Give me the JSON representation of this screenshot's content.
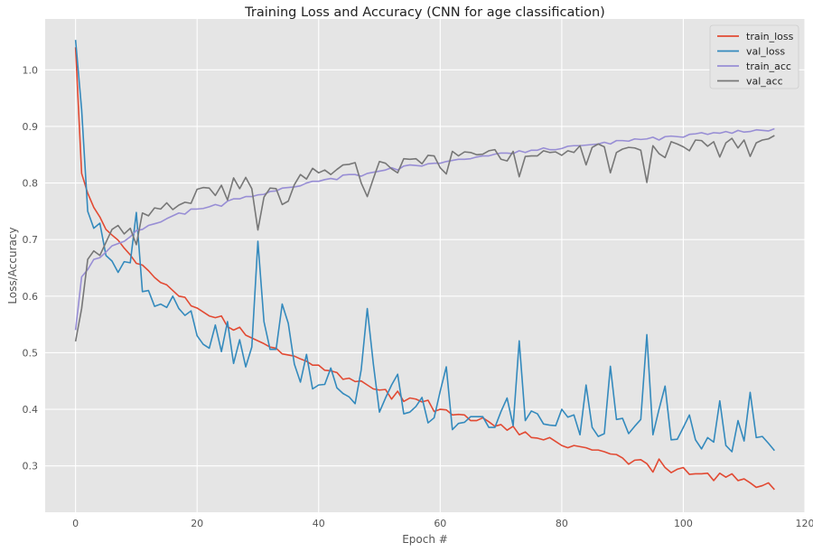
{
  "chart_data": {
    "type": "line",
    "title": "Training Loss and Accuracy (CNN for age classification)",
    "xlabel": "Epoch #",
    "ylabel": "Loss/Accuracy",
    "xlim": [
      -5,
      120
    ],
    "ylim": [
      0.218,
      1.09
    ],
    "xticks": [
      0,
      20,
      40,
      60,
      80,
      100,
      120
    ],
    "yticks": [
      0.3,
      0.4,
      0.5,
      0.6,
      0.7,
      0.8,
      0.9,
      1.0
    ],
    "xtick_labels": [
      "0",
      "20",
      "40",
      "60",
      "80",
      "100",
      "120"
    ],
    "ytick_labels": [
      "0.3",
      "0.4",
      "0.5",
      "0.6",
      "0.7",
      "0.8",
      "0.9",
      "1.0"
    ],
    "grid": true,
    "legend_position": "top-right",
    "style": {
      "background": "#e5e5e5",
      "grid_color": "#ffffff"
    },
    "series": [
      {
        "name": "train_loss",
        "color": "#e24a33",
        "values": [
          1.04,
          0.817,
          0.782,
          0.757,
          0.74,
          0.718,
          0.708,
          0.699,
          0.685,
          0.673,
          0.658,
          0.655,
          0.645,
          0.633,
          0.624,
          0.62,
          0.61,
          0.6,
          0.598,
          0.583,
          0.579,
          0.572,
          0.565,
          0.562,
          0.565,
          0.546,
          0.54,
          0.545,
          0.531,
          0.526,
          0.521,
          0.516,
          0.51,
          0.508,
          0.498,
          0.496,
          0.494,
          0.489,
          0.485,
          0.478,
          0.478,
          0.469,
          0.468,
          0.465,
          0.453,
          0.455,
          0.449,
          0.45,
          0.443,
          0.436,
          0.434,
          0.435,
          0.418,
          0.432,
          0.414,
          0.42,
          0.418,
          0.413,
          0.416,
          0.396,
          0.4,
          0.399,
          0.39,
          0.391,
          0.39,
          0.38,
          0.38,
          0.385,
          0.378,
          0.37,
          0.373,
          0.363,
          0.37,
          0.355,
          0.36,
          0.35,
          0.349,
          0.346,
          0.35,
          0.343,
          0.336,
          0.332,
          0.336,
          0.334,
          0.332,
          0.328,
          0.328,
          0.325,
          0.321,
          0.32,
          0.314,
          0.303,
          0.31,
          0.311,
          0.304,
          0.289,
          0.312,
          0.297,
          0.288,
          0.294,
          0.297,
          0.285,
          0.286,
          0.286,
          0.287,
          0.274,
          0.287,
          0.28,
          0.286,
          0.274,
          0.277,
          0.27,
          0.262,
          0.265,
          0.27,
          0.258
        ]
      },
      {
        "name": "val_loss",
        "color": "#348abd",
        "values": [
          1.053,
          0.93,
          0.75,
          0.72,
          0.729,
          0.672,
          0.662,
          0.642,
          0.661,
          0.659,
          0.748,
          0.608,
          0.61,
          0.582,
          0.586,
          0.58,
          0.6,
          0.578,
          0.566,
          0.574,
          0.53,
          0.515,
          0.508,
          0.549,
          0.502,
          0.555,
          0.481,
          0.523,
          0.475,
          0.51,
          0.697,
          0.555,
          0.506,
          0.506,
          0.586,
          0.552,
          0.48,
          0.448,
          0.497,
          0.436,
          0.443,
          0.444,
          0.473,
          0.438,
          0.428,
          0.422,
          0.41,
          0.47,
          0.578,
          0.48,
          0.395,
          0.42,
          0.443,
          0.462,
          0.392,
          0.395,
          0.405,
          0.421,
          0.376,
          0.385,
          0.432,
          0.475,
          0.364,
          0.375,
          0.377,
          0.387,
          0.387,
          0.387,
          0.368,
          0.368,
          0.396,
          0.42,
          0.371,
          0.521,
          0.38,
          0.397,
          0.392,
          0.374,
          0.372,
          0.371,
          0.4,
          0.386,
          0.39,
          0.355,
          0.443,
          0.368,
          0.352,
          0.357,
          0.476,
          0.382,
          0.384,
          0.357,
          0.37,
          0.382,
          0.532,
          0.355,
          0.4,
          0.441,
          0.346,
          0.347,
          0.368,
          0.39,
          0.346,
          0.33,
          0.35,
          0.342,
          0.415,
          0.336,
          0.325,
          0.38,
          0.344,
          0.43,
          0.35,
          0.352,
          0.34,
          0.327
        ]
      },
      {
        "name": "train_acc",
        "color": "#988ed5",
        "values": [
          0.54,
          0.634,
          0.647,
          0.665,
          0.668,
          0.678,
          0.689,
          0.693,
          0.697,
          0.705,
          0.716,
          0.718,
          0.725,
          0.728,
          0.731,
          0.737,
          0.742,
          0.747,
          0.745,
          0.754,
          0.754,
          0.755,
          0.758,
          0.762,
          0.759,
          0.768,
          0.772,
          0.772,
          0.776,
          0.776,
          0.779,
          0.78,
          0.785,
          0.786,
          0.791,
          0.792,
          0.793,
          0.795,
          0.8,
          0.803,
          0.803,
          0.806,
          0.808,
          0.806,
          0.814,
          0.815,
          0.815,
          0.812,
          0.817,
          0.819,
          0.821,
          0.823,
          0.827,
          0.823,
          0.83,
          0.832,
          0.831,
          0.83,
          0.834,
          0.835,
          0.835,
          0.838,
          0.84,
          0.842,
          0.842,
          0.843,
          0.846,
          0.848,
          0.848,
          0.851,
          0.853,
          0.853,
          0.852,
          0.857,
          0.854,
          0.858,
          0.858,
          0.862,
          0.859,
          0.859,
          0.861,
          0.865,
          0.866,
          0.866,
          0.867,
          0.868,
          0.869,
          0.872,
          0.869,
          0.875,
          0.875,
          0.874,
          0.878,
          0.877,
          0.878,
          0.881,
          0.876,
          0.882,
          0.883,
          0.882,
          0.881,
          0.886,
          0.887,
          0.889,
          0.886,
          0.889,
          0.888,
          0.891,
          0.888,
          0.893,
          0.89,
          0.891,
          0.894,
          0.893,
          0.892,
          0.896
        ]
      },
      {
        "name": "val_acc",
        "color": "#777777",
        "values": [
          0.52,
          0.578,
          0.665,
          0.68,
          0.672,
          0.695,
          0.718,
          0.725,
          0.71,
          0.72,
          0.691,
          0.747,
          0.742,
          0.756,
          0.754,
          0.765,
          0.753,
          0.761,
          0.766,
          0.764,
          0.789,
          0.792,
          0.791,
          0.778,
          0.796,
          0.77,
          0.809,
          0.79,
          0.81,
          0.79,
          0.717,
          0.775,
          0.791,
          0.79,
          0.762,
          0.768,
          0.797,
          0.815,
          0.807,
          0.826,
          0.818,
          0.823,
          0.815,
          0.824,
          0.832,
          0.833,
          0.836,
          0.8,
          0.776,
          0.808,
          0.838,
          0.835,
          0.825,
          0.818,
          0.843,
          0.842,
          0.843,
          0.834,
          0.849,
          0.848,
          0.827,
          0.816,
          0.856,
          0.848,
          0.855,
          0.854,
          0.85,
          0.851,
          0.857,
          0.859,
          0.842,
          0.839,
          0.856,
          0.811,
          0.847,
          0.848,
          0.848,
          0.857,
          0.854,
          0.855,
          0.849,
          0.857,
          0.854,
          0.866,
          0.832,
          0.863,
          0.869,
          0.864,
          0.818,
          0.854,
          0.86,
          0.863,
          0.862,
          0.858,
          0.801,
          0.866,
          0.852,
          0.845,
          0.873,
          0.869,
          0.864,
          0.857,
          0.876,
          0.875,
          0.865,
          0.873,
          0.846,
          0.871,
          0.879,
          0.862,
          0.876,
          0.847,
          0.871,
          0.876,
          0.878,
          0.884
        ]
      }
    ]
  }
}
